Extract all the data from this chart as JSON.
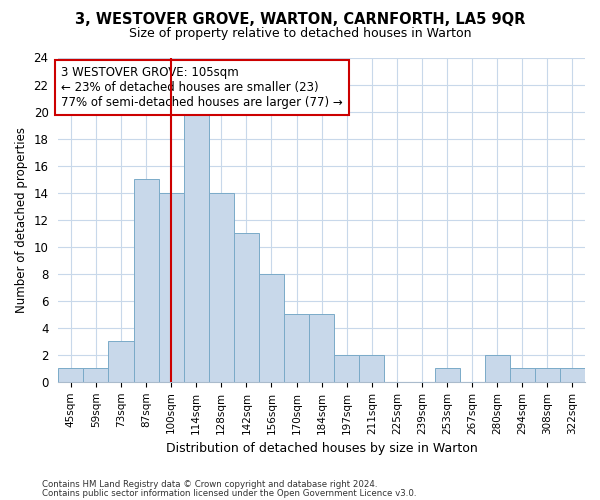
{
  "title": "3, WESTOVER GROVE, WARTON, CARNFORTH, LA5 9QR",
  "subtitle": "Size of property relative to detached houses in Warton",
  "xlabel": "Distribution of detached houses by size in Warton",
  "ylabel": "Number of detached properties",
  "categories": [
    "45sqm",
    "59sqm",
    "73sqm",
    "87sqm",
    "100sqm",
    "114sqm",
    "128sqm",
    "142sqm",
    "156sqm",
    "170sqm",
    "184sqm",
    "197sqm",
    "211sqm",
    "225sqm",
    "239sqm",
    "253sqm",
    "267sqm",
    "280sqm",
    "294sqm",
    "308sqm",
    "322sqm"
  ],
  "values": [
    1,
    1,
    3,
    15,
    14,
    20,
    14,
    11,
    8,
    5,
    5,
    2,
    2,
    0,
    0,
    1,
    0,
    2,
    1,
    1,
    1
  ],
  "bar_color": "#c8d8ea",
  "bar_edge_color": "#7aaac8",
  "annotation_text": "3 WESTOVER GROVE: 105sqm\n← 23% of detached houses are smaller (23)\n77% of semi-detached houses are larger (77) →",
  "annotation_box_color": "white",
  "annotation_box_edge": "#cc0000",
  "ylim": [
    0,
    24
  ],
  "yticks": [
    0,
    2,
    4,
    6,
    8,
    10,
    12,
    14,
    16,
    18,
    20,
    22,
    24
  ],
  "red_line_color": "#cc0000",
  "grid_color": "#c8d8ea",
  "footer1": "Contains HM Land Registry data © Crown copyright and database right 2024.",
  "footer2": "Contains public sector information licensed under the Open Government Licence v3.0.",
  "bg_color": "#ffffff",
  "plot_bg_color": "#ffffff",
  "red_line_index": 4.5
}
